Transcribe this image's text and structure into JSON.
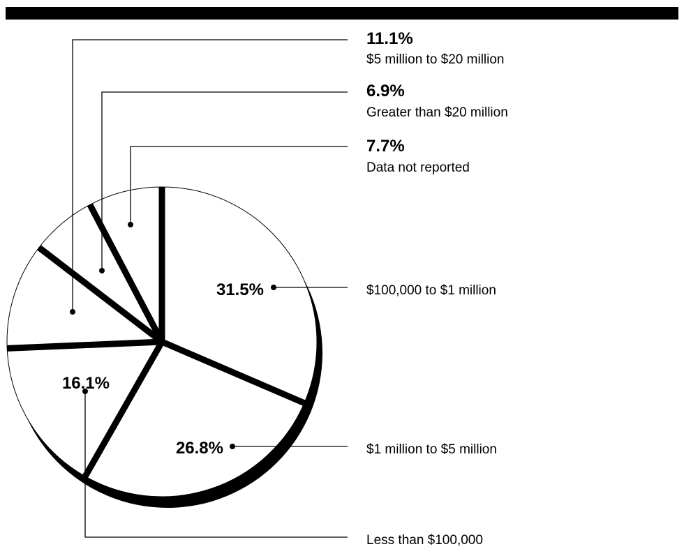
{
  "chart_data": {
    "type": "pie",
    "slices": [
      {
        "category": "$100,000 to $1 million",
        "value": 31.5,
        "value_label": "31.5%"
      },
      {
        "category": "$1 million to $5 million",
        "value": 26.8,
        "value_label": "26.8%"
      },
      {
        "category": "Less than $100,000",
        "value": 16.1,
        "value_label": "16.1%"
      },
      {
        "category": "$5 million to $20 million",
        "value": 11.1,
        "value_label": "11.1%"
      },
      {
        "category": "Greater than $20 million",
        "value": 6.9,
        "value_label": "6.9%"
      },
      {
        "category": "Data not reported",
        "value": 7.7,
        "value_label": "7.7%"
      }
    ]
  },
  "colors": {
    "fill": "#ffffff",
    "stroke": "#000000",
    "background": "#ffffff"
  }
}
